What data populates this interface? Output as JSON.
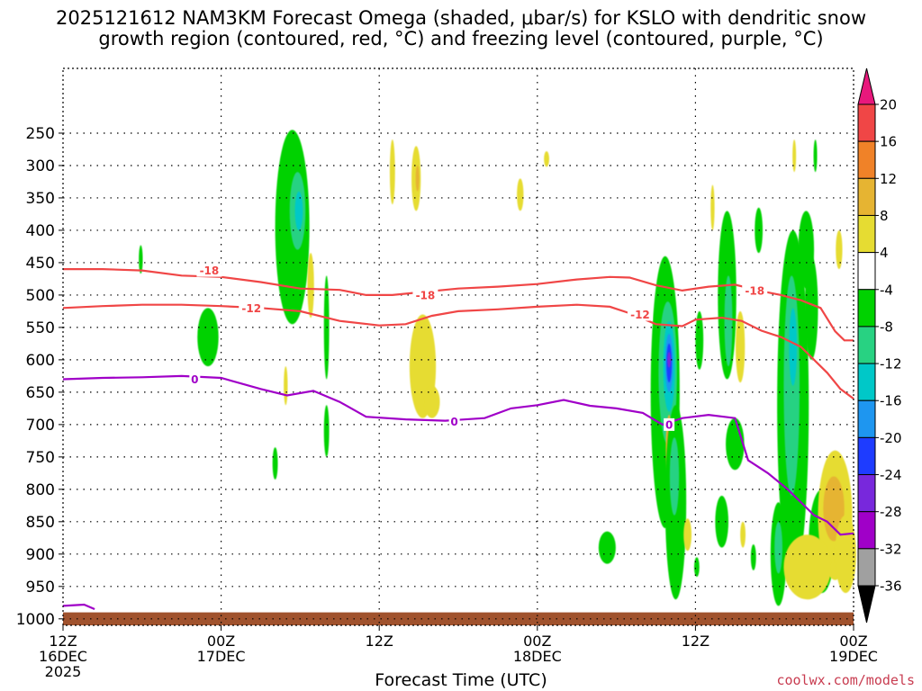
{
  "title": {
    "line1": "2025121612 NAM3KM Forecast Omega (shaded, μbar/s) for KSLO with dendritic snow",
    "line2": "growth region (contoured, red, °C) and freezing level (contoured, purple, °C)"
  },
  "x_axis_title": "Forecast Time (UTC)",
  "credit": "coolwx.com/models",
  "chart_data": {
    "type": "heatmap",
    "x_range_hours": [
      0,
      60
    ],
    "x_ticks": [
      {
        "hour": 0,
        "lines": [
          "12Z",
          "16DEC",
          "2025"
        ]
      },
      {
        "hour": 12,
        "lines": [
          "00Z",
          "17DEC"
        ]
      },
      {
        "hour": 24,
        "lines": [
          "12Z"
        ]
      },
      {
        "hour": 36,
        "lines": [
          "00Z",
          "18DEC"
        ]
      },
      {
        "hour": 48,
        "lines": [
          "12Z"
        ]
      },
      {
        "hour": 60,
        "lines": [
          "00Z",
          "19DEC"
        ]
      }
    ],
    "y_axis": "pressure (hPa)",
    "y_range_hpa": [
      1010,
      150
    ],
    "y_ticks": [
      250,
      300,
      350,
      400,
      450,
      500,
      550,
      600,
      650,
      700,
      750,
      800,
      850,
      900,
      950,
      1000
    ],
    "colorbar": {
      "labels": [
        "20",
        "16",
        "12",
        "8",
        "4",
        "-4",
        "-8",
        "-12",
        "-16",
        "-20",
        "-24",
        "-28",
        "-32",
        "-36"
      ],
      "bins": [
        {
          "min": 20,
          "max": 24,
          "color": "#e8187c"
        },
        {
          "min": 16,
          "max": 20,
          "color": "#f04646"
        },
        {
          "min": 12,
          "max": 16,
          "color": "#f08228"
        },
        {
          "min": 8,
          "max": 12,
          "color": "#e6b432"
        },
        {
          "min": 4,
          "max": 8,
          "color": "#e6dc32"
        },
        {
          "min": -4,
          "max": 4,
          "color": "#ffffff"
        },
        {
          "min": -8,
          "max": -4,
          "color": "#00d200"
        },
        {
          "min": -12,
          "max": -8,
          "color": "#28d282"
        },
        {
          "min": -16,
          "max": -12,
          "color": "#00c8c8"
        },
        {
          "min": -20,
          "max": -16,
          "color": "#1e96f0"
        },
        {
          "min": -24,
          "max": -20,
          "color": "#1e3cff"
        },
        {
          "min": -28,
          "max": -24,
          "color": "#7828dc"
        },
        {
          "min": -32,
          "max": -28,
          "color": "#a000c8"
        },
        {
          "min": -36,
          "max": -32,
          "color": "#a0a0a0"
        },
        {
          "min": -40,
          "max": -36,
          "color": "#000000"
        }
      ]
    },
    "omega_cells": [
      {
        "t": 5.9,
        "p": 445,
        "dt": 0.15,
        "dp": 22,
        "v": -6
      },
      {
        "t": 11.0,
        "p": 565,
        "dt": 0.8,
        "dp": 45,
        "v": -6
      },
      {
        "t": 17.4,
        "p": 395,
        "dt": 1.3,
        "dp": 150,
        "v": -6
      },
      {
        "t": 17.8,
        "p": 370,
        "dt": 0.6,
        "dp": 60,
        "v": -10
      },
      {
        "t": 17.9,
        "p": 370,
        "dt": 0.3,
        "dp": 30,
        "v": -14
      },
      {
        "t": 18.8,
        "p": 485,
        "dt": 0.25,
        "dp": 50,
        "v": 6
      },
      {
        "t": 20.0,
        "p": 550,
        "dt": 0.2,
        "dp": 80,
        "v": -6
      },
      {
        "t": 20.0,
        "p": 710,
        "dt": 0.2,
        "dp": 40,
        "v": -6
      },
      {
        "t": 16.1,
        "p": 760,
        "dt": 0.2,
        "dp": 25,
        "v": -6
      },
      {
        "t": 16.9,
        "p": 640,
        "dt": 0.15,
        "dp": 30,
        "v": 6
      },
      {
        "t": 25.0,
        "p": 310,
        "dt": 0.2,
        "dp": 50,
        "v": 6
      },
      {
        "t": 26.8,
        "p": 320,
        "dt": 0.35,
        "dp": 50,
        "v": 6
      },
      {
        "t": 26.9,
        "p": 320,
        "dt": 0.1,
        "dp": 20,
        "v": 10
      },
      {
        "t": 27.3,
        "p": 610,
        "dt": 1.0,
        "dp": 80,
        "v": 6
      },
      {
        "t": 28.0,
        "p": 665,
        "dt": 0.6,
        "dp": 25,
        "v": 6
      },
      {
        "t": 34.7,
        "p": 345,
        "dt": 0.25,
        "dp": 25,
        "v": 6
      },
      {
        "t": 36.7,
        "p": 290,
        "dt": 0.2,
        "dp": 12,
        "v": 6
      },
      {
        "t": 41.3,
        "p": 890,
        "dt": 0.65,
        "dp": 25,
        "v": -6
      },
      {
        "t": 45.7,
        "p": 650,
        "dt": 1.1,
        "dp": 210,
        "v": -6
      },
      {
        "t": 45.9,
        "p": 620,
        "dt": 0.7,
        "dp": 110,
        "v": -10
      },
      {
        "t": 46.0,
        "p": 610,
        "dt": 0.45,
        "dp": 70,
        "v": -14
      },
      {
        "t": 46.0,
        "p": 605,
        "dt": 0.3,
        "dp": 45,
        "v": -18
      },
      {
        "t": 46.0,
        "p": 605,
        "dt": 0.2,
        "dp": 30,
        "v": -22
      },
      {
        "t": 46.0,
        "p": 600,
        "dt": 0.1,
        "dp": 12,
        "v": -26
      },
      {
        "t": 46.0,
        "p": 735,
        "dt": 0.25,
        "dp": 50,
        "v": 8
      },
      {
        "t": 46.0,
        "p": 730,
        "dt": 0.12,
        "dp": 25,
        "v": 14
      },
      {
        "t": 46.5,
        "p": 820,
        "dt": 0.8,
        "dp": 150,
        "v": -6
      },
      {
        "t": 46.4,
        "p": 780,
        "dt": 0.35,
        "dp": 60,
        "v": -12
      },
      {
        "t": 48.3,
        "p": 570,
        "dt": 0.3,
        "dp": 45,
        "v": -6
      },
      {
        "t": 50.0,
        "p": 850,
        "dt": 0.5,
        "dp": 40,
        "v": -6
      },
      {
        "t": 48.1,
        "p": 920,
        "dt": 0.2,
        "dp": 15,
        "v": -6
      },
      {
        "t": 47.4,
        "p": 870,
        "dt": 0.3,
        "dp": 25,
        "v": 6
      },
      {
        "t": 50.4,
        "p": 500,
        "dt": 0.7,
        "dp": 130,
        "v": -6
      },
      {
        "t": 50.5,
        "p": 540,
        "dt": 0.3,
        "dp": 70,
        "v": -10
      },
      {
        "t": 51.4,
        "p": 580,
        "dt": 0.35,
        "dp": 55,
        "v": 6
      },
      {
        "t": 51.0,
        "p": 730,
        "dt": 0.7,
        "dp": 40,
        "v": -6
      },
      {
        "t": 51.6,
        "p": 870,
        "dt": 0.2,
        "dp": 20,
        "v": 6
      },
      {
        "t": 52.4,
        "p": 905,
        "dt": 0.2,
        "dp": 20,
        "v": -6
      },
      {
        "t": 49.3,
        "p": 365,
        "dt": 0.15,
        "dp": 35,
        "v": 6
      },
      {
        "t": 52.8,
        "p": 400,
        "dt": 0.3,
        "dp": 35,
        "v": -6
      },
      {
        "t": 55.4,
        "p": 670,
        "dt": 1.2,
        "dp": 270,
        "v": -6
      },
      {
        "t": 55.3,
        "p": 640,
        "dt": 0.6,
        "dp": 170,
        "v": -10
      },
      {
        "t": 55.4,
        "p": 580,
        "dt": 0.3,
        "dp": 60,
        "v": -14
      },
      {
        "t": 54.3,
        "p": 900,
        "dt": 0.6,
        "dp": 80,
        "v": -6
      },
      {
        "t": 54.3,
        "p": 890,
        "dt": 0.3,
        "dp": 40,
        "v": -10
      },
      {
        "t": 56.4,
        "p": 430,
        "dt": 0.6,
        "dp": 60,
        "v": -6
      },
      {
        "t": 56.8,
        "p": 520,
        "dt": 0.5,
        "dp": 80,
        "v": -6
      },
      {
        "t": 55.5,
        "p": 285,
        "dt": 0.12,
        "dp": 25,
        "v": 6
      },
      {
        "t": 57.1,
        "p": 285,
        "dt": 0.12,
        "dp": 25,
        "v": -6
      },
      {
        "t": 58.9,
        "p": 430,
        "dt": 0.25,
        "dp": 30,
        "v": 6
      },
      {
        "t": 57.6,
        "p": 880,
        "dt": 1.0,
        "dp": 80,
        "v": -6
      },
      {
        "t": 58.6,
        "p": 840,
        "dt": 1.3,
        "dp": 100,
        "v": 6
      },
      {
        "t": 58.5,
        "p": 830,
        "dt": 0.8,
        "dp": 50,
        "v": 8
      },
      {
        "t": 56.5,
        "p": 920,
        "dt": 1.8,
        "dp": 50,
        "v": 6
      },
      {
        "t": 59.4,
        "p": 900,
        "dt": 0.8,
        "dp": 60,
        "v": 6
      }
    ],
    "dgz_contours": [
      {
        "label": "-18",
        "color": "#f04646",
        "label_points": [
          {
            "t": 11.1,
            "p": 462
          },
          {
            "t": 27.5,
            "p": 500
          },
          {
            "t": 52.5,
            "p": 493
          }
        ],
        "points": [
          [
            0,
            460
          ],
          [
            3,
            460
          ],
          [
            6,
            462
          ],
          [
            9,
            470
          ],
          [
            12,
            472
          ],
          [
            15,
            480
          ],
          [
            18,
            490
          ],
          [
            21,
            492
          ],
          [
            23,
            500
          ],
          [
            25,
            500
          ],
          [
            27,
            496
          ],
          [
            30,
            490
          ],
          [
            33,
            487
          ],
          [
            36,
            483
          ],
          [
            39,
            476
          ],
          [
            41.5,
            472
          ],
          [
            43,
            473
          ],
          [
            45,
            485
          ],
          [
            47,
            493
          ],
          [
            49,
            487
          ],
          [
            51,
            484
          ],
          [
            53,
            494
          ],
          [
            54.5,
            500
          ],
          [
            56,
            508
          ],
          [
            57.5,
            520
          ],
          [
            58.6,
            556
          ],
          [
            59.3,
            570
          ],
          [
            60,
            570
          ]
        ]
      },
      {
        "label": "-12",
        "color": "#f04646",
        "label_points": [
          {
            "t": 14.3,
            "p": 520
          },
          {
            "t": 43.8,
            "p": 530
          }
        ],
        "points": [
          [
            0,
            520
          ],
          [
            3,
            517
          ],
          [
            6,
            515
          ],
          [
            9,
            515
          ],
          [
            12,
            517
          ],
          [
            15,
            520
          ],
          [
            18,
            525
          ],
          [
            21,
            540
          ],
          [
            24,
            547
          ],
          [
            26,
            545
          ],
          [
            28,
            532
          ],
          [
            30,
            525
          ],
          [
            33,
            522
          ],
          [
            36,
            518
          ],
          [
            39,
            515
          ],
          [
            41.5,
            518
          ],
          [
            43,
            528
          ],
          [
            45,
            545
          ],
          [
            47,
            548
          ],
          [
            48,
            538
          ],
          [
            50,
            535
          ],
          [
            51.5,
            540
          ],
          [
            53,
            555
          ],
          [
            54.5,
            565
          ],
          [
            56,
            580
          ],
          [
            58,
            620
          ],
          [
            59,
            645
          ],
          [
            60,
            660
          ]
        ]
      },
      {
        "label": "0",
        "color": "#a000c8",
        "label_points": [
          {
            "t": 10.0,
            "p": 630
          },
          {
            "t": 29.7,
            "p": 695
          },
          {
            "t": 46.0,
            "p": 700
          }
        ],
        "points": [
          [
            0,
            630
          ],
          [
            3,
            628
          ],
          [
            6,
            627
          ],
          [
            9,
            625
          ],
          [
            12,
            628
          ],
          [
            15,
            645
          ],
          [
            17,
            655
          ],
          [
            19,
            648
          ],
          [
            21,
            665
          ],
          [
            23,
            688
          ],
          [
            26,
            692
          ],
          [
            29,
            694
          ],
          [
            32,
            690
          ],
          [
            34,
            675
          ],
          [
            36,
            670
          ],
          [
            38,
            662
          ],
          [
            40,
            671
          ],
          [
            42,
            675
          ],
          [
            44,
            682
          ],
          [
            45.5,
            700
          ],
          [
            47,
            690
          ],
          [
            49,
            685
          ],
          [
            51,
            690
          ],
          [
            52,
            755
          ],
          [
            53.5,
            775
          ],
          [
            55,
            800
          ],
          [
            57,
            840
          ],
          [
            58,
            850
          ],
          [
            59,
            870
          ],
          [
            60,
            868
          ]
        ]
      }
    ],
    "low_zero_contour": [
      [
        0,
        980
      ],
      [
        1.6,
        978
      ],
      [
        2.4,
        985
      ]
    ],
    "ground": {
      "color": "#a0522d",
      "top_hpa": 990
    }
  }
}
